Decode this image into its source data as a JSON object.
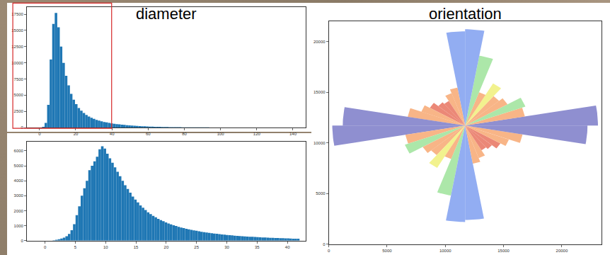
{
  "chart_data": [
    {
      "type": "histogram",
      "title": "diameter",
      "color": "#1f77b4",
      "bins": [
        0,
        1.4,
        2.8,
        4.2,
        5.6,
        7,
        8.4,
        9.8,
        11.2,
        12.6,
        14,
        15.4,
        16.8,
        18.2,
        19.6,
        21,
        22.4,
        23.8,
        25.2,
        26.6,
        28,
        29.4,
        30.8,
        32.2,
        33.6,
        35,
        36.4,
        37.8,
        39.2,
        40.6,
        42,
        43.4,
        44.8,
        46.2,
        47.6,
        49,
        50.4,
        51.8,
        53.2,
        54.6,
        56,
        57.4,
        58.8,
        60.2,
        61.6,
        63,
        64.4,
        65.8,
        67.2,
        68.6,
        70,
        71.4,
        72.8,
        74.2,
        75.6,
        77,
        78.4,
        79.8,
        81.2,
        82.6,
        84,
        85.4,
        86.8,
        88.2,
        89.6,
        91,
        92.4,
        93.8,
        95.2,
        96.6,
        98,
        99.4,
        100.8,
        102.2,
        103.6,
        105,
        106.4,
        107.8,
        109.2,
        110.6,
        112,
        113.4,
        114.8,
        116.2,
        117.6,
        119,
        120.4,
        121.8,
        123.2,
        124.6,
        126,
        127.4,
        128.8,
        130.2,
        131.6,
        133,
        134.4,
        135.8,
        137.2,
        138.6,
        140
      ],
      "values": [
        0,
        100,
        700,
        3500,
        10500,
        16000,
        17700,
        15500,
        12500,
        10000,
        8000,
        6500,
        5200,
        4300,
        3600,
        3000,
        2600,
        2250,
        1950,
        1700,
        1500,
        1330,
        1180,
        1060,
        950,
        860,
        780,
        710,
        640,
        580,
        530,
        480,
        440,
        400,
        360,
        330,
        300,
        270,
        245,
        220,
        200,
        180,
        165,
        150,
        135,
        120,
        110,
        100,
        90,
        82,
        75,
        68,
        62,
        56,
        50,
        45,
        41,
        37,
        33,
        30,
        27,
        24,
        22,
        20,
        18,
        16,
        14,
        13,
        12,
        11,
        10,
        9,
        8,
        7,
        7,
        6,
        5,
        5,
        4,
        4,
        4,
        3,
        3,
        3,
        2,
        2,
        2,
        2,
        2,
        1,
        1,
        1,
        1,
        1,
        1,
        1,
        1,
        0,
        1,
        1
      ],
      "xlim": [
        -7,
        147
      ],
      "xticks": [
        0,
        20,
        40,
        60,
        80,
        100,
        120,
        140
      ],
      "ylim": [
        0,
        18600
      ],
      "yticks": [
        0,
        2500,
        5000,
        7500,
        10000,
        12500,
        15000,
        17500
      ],
      "grid": false
    },
    {
      "type": "histogram",
      "color": "#1f77b4",
      "bins": [
        0,
        0.42,
        0.84,
        1.26,
        1.68,
        2.1,
        2.52,
        2.94,
        3.36,
        3.78,
        4.2,
        4.62,
        5.04,
        5.46,
        5.88,
        6.3,
        6.72,
        7.14,
        7.56,
        7.98,
        8.4,
        8.82,
        9.24,
        9.66,
        10.08,
        10.5,
        10.92,
        11.34,
        11.76,
        12.18,
        12.6,
        13.02,
        13.44,
        13.86,
        14.28,
        14.7,
        15.12,
        15.54,
        15.96,
        16.38,
        16.8,
        17.22,
        17.64,
        18.06,
        18.48,
        18.9,
        19.32,
        19.74,
        20.16,
        20.58,
        21,
        21.42,
        21.84,
        22.26,
        22.68,
        23.1,
        23.52,
        23.94,
        24.36,
        24.78,
        25.2,
        25.62,
        26.04,
        26.46,
        26.88,
        27.3,
        27.72,
        28.14,
        28.56,
        28.98,
        29.4,
        29.82,
        30.24,
        30.66,
        31.08,
        31.5,
        31.92,
        32.34,
        32.76,
        33.18,
        33.6,
        34.02,
        34.44,
        34.86,
        35.28,
        35.7,
        36.12,
        36.54,
        36.96,
        37.38,
        37.8,
        38.22,
        38.64,
        39.06,
        39.48,
        39.9,
        40.32,
        40.74,
        41.16,
        41.58,
        42
      ],
      "values": [
        0,
        0,
        0,
        30,
        60,
        100,
        150,
        200,
        300,
        450,
        700,
        1100,
        1700,
        2300,
        3000,
        3500,
        4000,
        4700,
        5000,
        5300,
        5600,
        6100,
        6300,
        6150,
        5800,
        5500,
        5200,
        4900,
        4600,
        4300,
        4000,
        3700,
        3450,
        3200,
        2950,
        2750,
        2550,
        2350,
        2200,
        2050,
        1900,
        1780,
        1660,
        1560,
        1460,
        1380,
        1300,
        1220,
        1150,
        1090,
        1030,
        980,
        930,
        880,
        840,
        800,
        760,
        720,
        690,
        660,
        630,
        600,
        575,
        550,
        525,
        500,
        480,
        460,
        440,
        420,
        400,
        385,
        370,
        355,
        340,
        325,
        310,
        300,
        290,
        280,
        270,
        260,
        250,
        240,
        230,
        220,
        212,
        205,
        198,
        190,
        183,
        176,
        170,
        164,
        158,
        152,
        146,
        140,
        135,
        130
      ],
      "xlim": [
        -3,
        43
      ],
      "xticks": [
        0,
        5,
        10,
        15,
        20,
        25,
        30,
        35,
        40
      ],
      "ylim": [
        0,
        6600
      ],
      "yticks": [
        0,
        1000,
        2000,
        3000,
        4000,
        5000,
        6000
      ],
      "grid": false
    },
    {
      "type": "rose",
      "title": "orientation",
      "center": [
        11700,
        11700
      ],
      "angles": [
        5,
        15,
        25,
        35,
        45,
        55,
        65,
        75,
        85,
        95,
        105,
        115,
        125,
        135,
        145,
        155,
        165,
        175
      ],
      "values": [
        11400,
        5200,
        5500,
        4200,
        3800,
        4800,
        3500,
        7000,
        9500,
        9300,
        3800,
        3400,
        2800,
        3000,
        3500,
        4000,
        5000,
        10500
      ],
      "colors": [
        "#7b7bc8",
        "#f7a872",
        "#9de39a",
        "#f7a872",
        "#f7a872",
        "#f0f07a",
        "#f7a872",
        "#9de39a",
        "#7f9ff0",
        "#7f9ff0",
        "#f7a872",
        "#f7a872",
        "#e8735f",
        "#e8735f",
        "#e8735f",
        "#f7a872",
        "#f7a872",
        "#7b7bc8"
      ],
      "xlim": [
        0,
        23400
      ],
      "xticks": [
        0,
        5000,
        10000,
        15000,
        20000
      ],
      "ylim": [
        0,
        22000
      ],
      "yticks": [
        0,
        5000,
        10000,
        15000,
        20000
      ],
      "grid": false
    }
  ]
}
